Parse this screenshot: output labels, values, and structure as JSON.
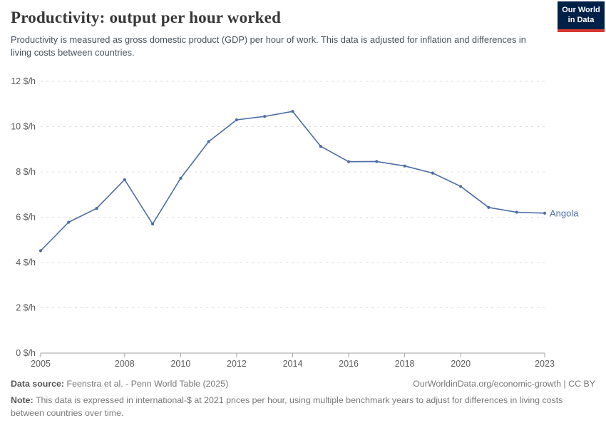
{
  "header": {
    "title": "Productivity: output per hour worked",
    "subtitle": "Productivity is measured as gross domestic product (GDP) per hour of work. This data is adjusted for inflation and differences in living costs between countries.",
    "logo": {
      "line1": "Our World",
      "line2": "in Data",
      "bg_color": "#002147",
      "bar_color": "#d7382f"
    }
  },
  "chart_data": {
    "type": "line",
    "title": "Productivity: output per hour worked",
    "xlabel": "",
    "ylabel": "",
    "x": [
      2005,
      2006,
      2007,
      2008,
      2009,
      2010,
      2011,
      2012,
      2013,
      2014,
      2015,
      2016,
      2017,
      2018,
      2019,
      2020,
      2021,
      2022,
      2023
    ],
    "series": [
      {
        "name": "Angola",
        "color": "#4c6ca6",
        "values": [
          4.52,
          5.78,
          6.39,
          7.66,
          5.7,
          7.72,
          9.34,
          10.3,
          10.45,
          10.67,
          9.13,
          8.45,
          8.46,
          8.26,
          7.95,
          7.36,
          6.43,
          6.22,
          6.18
        ]
      }
    ],
    "ylim": [
      0,
      12
    ],
    "yticks": [
      0,
      2,
      4,
      6,
      8,
      10,
      12
    ],
    "ytick_suffix": " $/h",
    "xticks": [
      2005,
      2008,
      2010,
      2012,
      2014,
      2016,
      2018,
      2020,
      2023
    ],
    "grid": "horizontal-dashed",
    "legend_position": "end-of-line-label",
    "colors": {
      "grid": "#dddddd",
      "axis": "#a1a1a1",
      "tick_label": "#5b5b5b"
    }
  },
  "footer": {
    "source_label": "Data source:",
    "source_text": " Feenstra et al. - Penn World Table (2025)",
    "link_text": "OurWorldinData.org/economic-growth | CC BY",
    "note_label": "Note:",
    "note_text": " This data is expressed in international-$ at 2021 prices per hour, using multiple benchmark years to adjust for differences in living costs between countries over time."
  }
}
